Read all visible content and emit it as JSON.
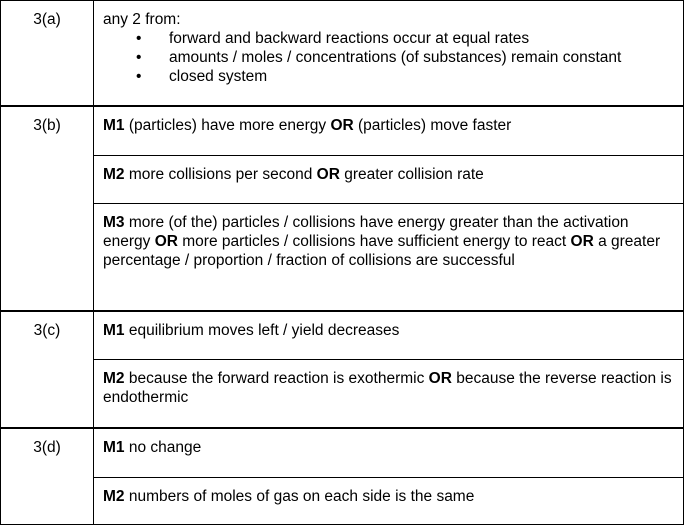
{
  "rows": {
    "q3a": {
      "label": "3(a)",
      "intro": "any 2 from:",
      "bullet_symbol": "•",
      "points": [
        "forward and backward reactions occur at equal rates",
        "amounts / moles / concentrations (of substances) remain constant",
        "closed system"
      ]
    },
    "q3b": {
      "label": "3(b)",
      "m1": {
        "mark": "M1",
        "a": " (particles) have more energy ",
        "or": "OR",
        "b": " (particles) move faster"
      },
      "m2": {
        "mark": "M2",
        "a": " more collisions per second ",
        "or": "OR",
        "b": " greater collision rate"
      },
      "m3": {
        "mark": "M3",
        "a": " more (of the) particles / collisions have energy greater than the activation energy ",
        "or1": "OR",
        "b": " more particles / collisions have sufficient energy to react ",
        "or2": "OR",
        "c": " a greater percentage / proportion / fraction of collisions are successful"
      }
    },
    "q3c": {
      "label": "3(c)",
      "m1": {
        "mark": "M1",
        "text": " equilibrium moves left / yield decreases"
      },
      "m2": {
        "mark": "M2",
        "a": " because the forward reaction is exothermic ",
        "or": "OR",
        "b": " because the reverse reaction is endothermic"
      }
    },
    "q3d": {
      "label": "3(d)",
      "m1": {
        "mark": "M1",
        "text": " no change"
      },
      "m2": {
        "mark": "M2",
        "text": " numbers of moles of gas on each side is the same"
      }
    }
  }
}
